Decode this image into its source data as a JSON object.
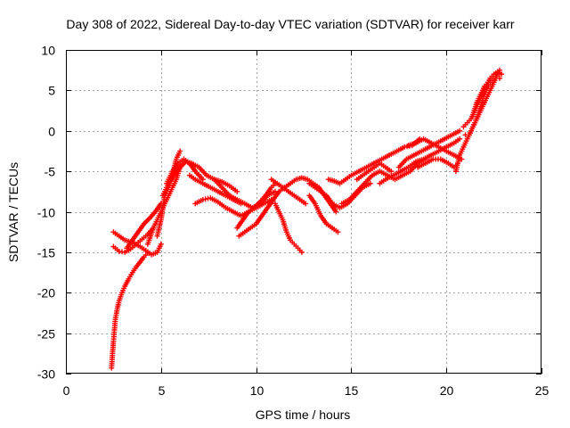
{
  "chart_data": {
    "type": "scatter",
    "title": "Day 308 of 2022, Sidereal Day-to-day VTEC variation (SDTVAR) for receiver karr",
    "xlabel": "GPS time / hours",
    "ylabel": "SDTVAR / TECUs",
    "xlim": [
      0,
      25
    ],
    "ylim": [
      -30,
      10
    ],
    "xticks": [
      0,
      5,
      10,
      15,
      20,
      25
    ],
    "yticks": [
      -30,
      -25,
      -20,
      -15,
      -10,
      -5,
      0,
      5,
      10
    ],
    "xtick_labels": [
      "0",
      "5",
      "10",
      "15",
      "20",
      "25"
    ],
    "ytick_labels": [
      "-30",
      "-25",
      "-20",
      "-15",
      "-10",
      "-5",
      "0",
      "5",
      "10"
    ],
    "grid": true,
    "legend": "none",
    "marker": "+",
    "color": "#ff0000",
    "series": [
      {
        "segments": [
          [
            [
              2.4,
              -29.3
            ],
            [
              2.45,
              -27.5
            ],
            [
              2.5,
              -26.0
            ],
            [
              2.55,
              -24.6
            ],
            [
              2.6,
              -23.3
            ],
            [
              2.7,
              -22.0
            ],
            [
              2.8,
              -21.0
            ],
            [
              2.95,
              -20.0
            ],
            [
              3.1,
              -19.2
            ],
            [
              3.3,
              -18.3
            ],
            [
              3.5,
              -17.5
            ],
            [
              3.7,
              -16.8
            ],
            [
              3.9,
              -16.2
            ],
            [
              4.1,
              -15.6
            ],
            [
              4.3,
              -15.1
            ]
          ],
          [
            [
              2.5,
              -14.3
            ],
            [
              2.8,
              -14.9
            ],
            [
              3.1,
              -15.0
            ],
            [
              3.4,
              -14.6
            ],
            [
              3.7,
              -14.0
            ],
            [
              4.0,
              -13.4
            ],
            [
              4.3,
              -12.8
            ],
            [
              4.6,
              -12.0
            ]
          ],
          [
            [
              2.5,
              -12.5
            ],
            [
              2.8,
              -13.0
            ],
            [
              3.1,
              -13.5
            ],
            [
              3.5,
              -13.8
            ],
            [
              3.9,
              -14.3
            ],
            [
              4.2,
              -14.8
            ],
            [
              4.5,
              -15.3
            ],
            [
              4.8,
              -15.0
            ],
            [
              5.0,
              -14.0
            ]
          ],
          [
            [
              3.2,
              -14.5
            ],
            [
              3.5,
              -13.5
            ],
            [
              3.8,
              -12.5
            ],
            [
              4.1,
              -11.5
            ],
            [
              4.4,
              -10.8
            ],
            [
              4.7,
              -10.0
            ],
            [
              5.0,
              -9.0
            ]
          ],
          [
            [
              4.3,
              -14.0
            ],
            [
              4.6,
              -12.0
            ],
            [
              4.9,
              -10.5
            ],
            [
              5.2,
              -9.0
            ],
            [
              5.5,
              -7.5
            ],
            [
              5.8,
              -6.0
            ],
            [
              6.0,
              -4.5
            ]
          ],
          [
            [
              4.8,
              -13.0
            ],
            [
              5.0,
              -11.0
            ],
            [
              5.1,
              -9.5
            ],
            [
              5.2,
              -8.0
            ],
            [
              5.4,
              -7.0
            ],
            [
              5.6,
              -5.5
            ],
            [
              5.8,
              -3.5
            ],
            [
              6.0,
              -2.5
            ]
          ],
          [
            [
              5.1,
              -8.0
            ],
            [
              5.4,
              -6.5
            ],
            [
              5.7,
              -5.5
            ],
            [
              6.0,
              -4.5
            ],
            [
              6.3,
              -3.8
            ],
            [
              6.6,
              -4.0
            ],
            [
              7.0,
              -4.5
            ],
            [
              7.4,
              -5.5
            ],
            [
              7.8,
              -6.0
            ],
            [
              8.2,
              -6.3
            ],
            [
              8.6,
              -6.8
            ],
            [
              9.0,
              -7.5
            ]
          ],
          [
            [
              5.3,
              -6.5
            ],
            [
              5.6,
              -5.0
            ],
            [
              5.9,
              -4.0
            ],
            [
              6.2,
              -3.5
            ],
            [
              6.5,
              -4.0
            ],
            [
              6.8,
              -5.0
            ],
            [
              7.2,
              -6.0
            ]
          ],
          [
            [
              6.5,
              -5.5
            ],
            [
              6.8,
              -6.0
            ],
            [
              7.2,
              -6.5
            ],
            [
              7.6,
              -7.0
            ],
            [
              8.0,
              -7.5
            ],
            [
              8.4,
              -8.0
            ],
            [
              8.8,
              -8.5
            ],
            [
              9.2,
              -9.0
            ]
          ],
          [
            [
              6.8,
              -9.0
            ],
            [
              7.2,
              -8.5
            ],
            [
              7.6,
              -8.3
            ],
            [
              8.0,
              -8.8
            ],
            [
              8.4,
              -9.5
            ],
            [
              8.8,
              -10.0
            ],
            [
              9.2,
              -10.5
            ],
            [
              9.6,
              -10.0
            ],
            [
              10.0,
              -9.5
            ],
            [
              10.4,
              -9.0
            ],
            [
              10.8,
              -8.5
            ]
          ],
          [
            [
              7.8,
              -6.0
            ],
            [
              8.2,
              -7.0
            ],
            [
              8.6,
              -8.0
            ],
            [
              9.0,
              -8.5
            ],
            [
              9.4,
              -9.0
            ],
            [
              9.8,
              -9.5
            ],
            [
              10.2,
              -9.0
            ],
            [
              10.6,
              -8.0
            ],
            [
              11.0,
              -7.5
            ]
          ],
          [
            [
              9.0,
              -12.0
            ],
            [
              9.3,
              -11.0
            ],
            [
              9.6,
              -10.0
            ],
            [
              9.9,
              -9.5
            ],
            [
              10.2,
              -8.8
            ],
            [
              10.5,
              -8.0
            ],
            [
              10.8,
              -7.0
            ],
            [
              11.0,
              -6.5
            ]
          ],
          [
            [
              9.1,
              -13.0
            ],
            [
              9.4,
              -12.5
            ],
            [
              9.7,
              -12.0
            ],
            [
              10.0,
              -11.5
            ],
            [
              10.3,
              -10.5
            ],
            [
              10.6,
              -9.5
            ],
            [
              10.9,
              -8.5
            ],
            [
              11.2,
              -7.5
            ],
            [
              11.5,
              -7.0
            ]
          ],
          [
            [
              10.8,
              -6.0
            ],
            [
              11.1,
              -6.5
            ],
            [
              11.4,
              -7.0
            ],
            [
              11.7,
              -7.5
            ],
            [
              12.0,
              -8.0
            ],
            [
              12.3,
              -8.5
            ],
            [
              12.6,
              -9.0
            ]
          ],
          [
            [
              11.0,
              -9.0
            ],
            [
              11.2,
              -10.0
            ],
            [
              11.4,
              -11.0
            ],
            [
              11.6,
              -12.5
            ],
            [
              11.8,
              -13.5
            ],
            [
              12.0,
              -14.0
            ],
            [
              12.2,
              -14.5
            ],
            [
              12.4,
              -15.0
            ]
          ],
          [
            [
              11.5,
              -7.0
            ],
            [
              11.8,
              -6.5
            ],
            [
              12.1,
              -6.0
            ],
            [
              12.4,
              -5.8
            ],
            [
              12.7,
              -6.0
            ],
            [
              13.0,
              -6.5
            ],
            [
              13.3,
              -7.0
            ],
            [
              13.6,
              -8.0
            ],
            [
              13.9,
              -9.0
            ],
            [
              14.2,
              -10.0
            ]
          ],
          [
            [
              12.8,
              -8.0
            ],
            [
              13.1,
              -9.0
            ],
            [
              13.4,
              -10.5
            ],
            [
              13.7,
              -11.5
            ],
            [
              14.0,
              -12.0
            ],
            [
              14.3,
              -12.5
            ]
          ],
          [
            [
              12.8,
              -6.5
            ],
            [
              13.1,
              -7.0
            ],
            [
              13.4,
              -7.5
            ],
            [
              13.7,
              -8.0
            ],
            [
              14.0,
              -9.0
            ],
            [
              14.4,
              -9.5
            ],
            [
              14.8,
              -9.0
            ],
            [
              15.2,
              -8.0
            ],
            [
              15.6,
              -7.0
            ],
            [
              16.0,
              -6.5
            ]
          ],
          [
            [
              13.8,
              -6.0
            ],
            [
              14.1,
              -6.2
            ],
            [
              14.4,
              -6.5
            ],
            [
              14.7,
              -6.0
            ],
            [
              15.0,
              -5.5
            ],
            [
              15.4,
              -5.0
            ],
            [
              15.8,
              -4.5
            ],
            [
              16.2,
              -4.0
            ],
            [
              16.6,
              -3.5
            ],
            [
              17.0,
              -3.0
            ],
            [
              17.4,
              -2.5
            ],
            [
              17.8,
              -2.0
            ],
            [
              18.2,
              -1.8
            ],
            [
              18.6,
              -1.0
            ]
          ],
          [
            [
              14.5,
              -9.0
            ],
            [
              14.9,
              -8.5
            ],
            [
              15.3,
              -7.5
            ],
            [
              15.7,
              -6.5
            ],
            [
              16.1,
              -5.5
            ],
            [
              16.5,
              -5.0
            ],
            [
              16.9,
              -5.5
            ],
            [
              17.3,
              -6.0
            ],
            [
              17.7,
              -5.5
            ],
            [
              18.1,
              -5.0
            ],
            [
              18.5,
              -4.0
            ],
            [
              18.9,
              -3.5
            ]
          ],
          [
            [
              15.3,
              -6.0
            ],
            [
              15.6,
              -5.5
            ],
            [
              15.9,
              -5.0
            ],
            [
              16.2,
              -4.5
            ],
            [
              16.5,
              -4.0
            ],
            [
              16.8,
              -4.5
            ],
            [
              17.1,
              -5.0
            ]
          ],
          [
            [
              16.5,
              -6.5
            ],
            [
              16.8,
              -6.0
            ],
            [
              17.2,
              -5.5
            ],
            [
              17.6,
              -5.0
            ],
            [
              18.0,
              -4.5
            ],
            [
              18.4,
              -3.8
            ],
            [
              18.8,
              -3.5
            ],
            [
              19.2,
              -3.0
            ],
            [
              19.6,
              -2.5
            ],
            [
              20.0,
              -2.0
            ],
            [
              20.4,
              -1.5
            ],
            [
              20.7,
              -1.0
            ]
          ],
          [
            [
              17.5,
              -4.5
            ],
            [
              17.9,
              -3.5
            ],
            [
              18.3,
              -3.0
            ],
            [
              18.7,
              -2.5
            ],
            [
              19.1,
              -2.0
            ],
            [
              19.5,
              -1.5
            ],
            [
              19.9,
              -1.0
            ],
            [
              20.3,
              -0.5
            ],
            [
              20.7,
              0.0
            ]
          ],
          [
            [
              18.0,
              -1.8
            ],
            [
              18.4,
              -1.5
            ],
            [
              18.8,
              -1.0
            ],
            [
              19.2,
              -1.5
            ],
            [
              19.6,
              -2.0
            ],
            [
              20.0,
              -2.5
            ],
            [
              20.4,
              -3.0
            ],
            [
              20.8,
              -3.5
            ]
          ],
          [
            [
              18.5,
              -4.5
            ],
            [
              18.9,
              -4.0
            ],
            [
              19.3,
              -3.5
            ],
            [
              19.7,
              -3.5
            ],
            [
              20.1,
              -4.0
            ],
            [
              20.4,
              -4.5
            ],
            [
              20.6,
              -4.0
            ]
          ],
          [
            [
              20.5,
              -5.0
            ],
            [
              20.7,
              -3.0
            ],
            [
              20.9,
              -2.0
            ],
            [
              21.1,
              -1.0
            ],
            [
              21.3,
              0.0
            ],
            [
              21.5,
              1.0
            ],
            [
              21.7,
              2.0
            ],
            [
              21.9,
              3.0
            ],
            [
              22.1,
              4.0
            ],
            [
              22.3,
              5.0
            ],
            [
              22.5,
              6.0
            ],
            [
              22.7,
              7.0
            ]
          ],
          [
            [
              20.9,
              0.5
            ],
            [
              21.1,
              1.0
            ],
            [
              21.3,
              1.5
            ],
            [
              21.5,
              2.5
            ],
            [
              21.7,
              3.5
            ],
            [
              21.9,
              4.5
            ],
            [
              22.1,
              5.5
            ],
            [
              22.3,
              6.5
            ],
            [
              22.5,
              7.0
            ],
            [
              22.7,
              7.3
            ],
            [
              22.9,
              7.0
            ]
          ],
          [
            [
              21.0,
              -0.5
            ],
            [
              21.2,
              -0.5
            ],
            [
              21.4,
              0.5
            ],
            [
              21.6,
              1.5
            ],
            [
              21.8,
              3.0
            ],
            [
              22.0,
              4.5
            ],
            [
              22.2,
              5.5
            ],
            [
              22.4,
              6.0
            ],
            [
              22.6,
              6.5
            ],
            [
              22.8,
              6.5
            ]
          ],
          [
            [
              21.4,
              2.0
            ],
            [
              21.6,
              3.5
            ],
            [
              21.8,
              4.5
            ],
            [
              22.0,
              5.5
            ],
            [
              22.2,
              6.0
            ],
            [
              22.4,
              6.5
            ],
            [
              22.6,
              7.0
            ],
            [
              22.8,
              7.5
            ]
          ]
        ]
      }
    ]
  }
}
